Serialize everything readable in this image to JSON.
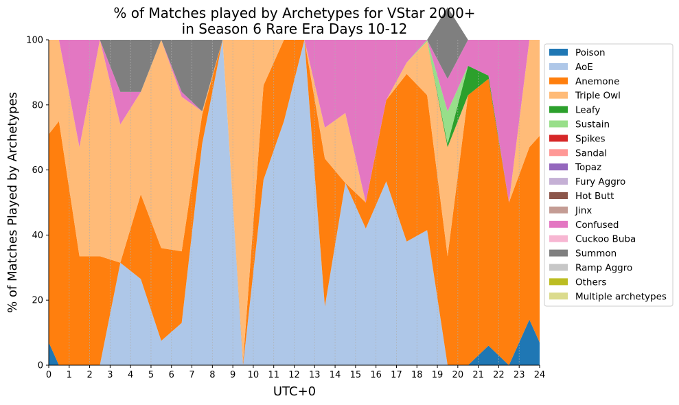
{
  "chart_data": {
    "type": "area",
    "stacked": true,
    "title_lines": [
      "% of Matches played by Archetypes for VStar 2000+",
      "in Season 6 Rare Era Days 10-12"
    ],
    "xlabel": "UTC+0",
    "ylabel": "% of Matches Played by Archetypes",
    "xlim": [
      0,
      24
    ],
    "ylim": [
      0,
      100
    ],
    "xticks": [
      0,
      1,
      2,
      3,
      4,
      5,
      6,
      7,
      8,
      9,
      10,
      11,
      12,
      13,
      14,
      15,
      16,
      17,
      18,
      19,
      20,
      21,
      22,
      23,
      24
    ],
    "yticks": [
      0,
      20,
      40,
      60,
      80,
      100
    ],
    "vertical_grid": true,
    "legend_position": "outside-right",
    "x": [
      0,
      0.5,
      1.5,
      2.5,
      3.5,
      4.5,
      5.5,
      6.5,
      7.5,
      8.5,
      9.5,
      10.5,
      11.5,
      12.5,
      13.5,
      14.5,
      15.5,
      16.5,
      17.5,
      18.5,
      19.5,
      20.5,
      21.5,
      22.5,
      23.5,
      24
    ],
    "series": [
      {
        "name": "Poison",
        "color": "#1f77b4",
        "values": [
          7,
          0,
          0,
          0,
          0,
          0,
          0,
          0,
          0,
          0,
          0,
          0,
          0,
          0,
          0,
          0,
          0,
          0,
          0,
          0,
          0,
          0,
          6,
          0,
          14,
          7
        ]
      },
      {
        "name": "AoE",
        "color": "#aec7e8",
        "values": [
          0,
          0,
          0,
          0,
          31.5,
          26.5,
          7.5,
          13,
          68,
          100,
          0,
          57,
          75,
          100,
          18,
          56,
          42,
          56.5,
          38,
          41.5,
          0,
          0,
          0,
          0,
          0,
          0
        ]
      },
      {
        "name": "Anemone",
        "color": "#ff7f0e",
        "values": [
          64,
          75,
          33.5,
          33.5,
          0,
          26,
          28.5,
          22,
          9,
          0,
          1,
          29,
          25,
          0,
          45.5,
          0,
          8,
          25,
          51.5,
          41.5,
          33.5,
          83,
          82,
          50,
          53,
          63.5
        ]
      },
      {
        "name": "Triple Owl",
        "color": "#ffbb78",
        "values": [
          29,
          25,
          33.5,
          66.5,
          42.5,
          31.5,
          64,
          47.5,
          1,
          0,
          99,
          14,
          0,
          0,
          9.5,
          21.5,
          0,
          0,
          3.5,
          16.5,
          33.5,
          0,
          0,
          0,
          33,
          29.5
        ]
      },
      {
        "name": "Leafy",
        "color": "#2ca02c",
        "values": [
          0,
          0,
          0,
          0,
          0,
          0,
          0,
          0,
          0,
          0,
          0,
          0,
          0,
          0,
          0,
          0,
          0,
          0,
          0,
          0,
          1,
          9,
          1,
          0,
          0,
          0
        ]
      },
      {
        "name": "Sustain",
        "color": "#98df8a",
        "values": [
          0,
          0,
          0,
          0,
          0,
          0,
          0,
          0,
          0,
          0,
          0,
          0,
          0,
          0,
          0,
          0,
          0,
          0,
          0,
          0.5,
          10,
          0,
          0,
          0,
          0,
          0
        ]
      },
      {
        "name": "Spikes",
        "color": "#d62728",
        "values": [
          0,
          0,
          0,
          0,
          0,
          0,
          0,
          0,
          0,
          0,
          0,
          0,
          0,
          0,
          0,
          0,
          0,
          0,
          0,
          0,
          0,
          0,
          0,
          0,
          0,
          0
        ]
      },
      {
        "name": "Sandal",
        "color": "#ff9896",
        "values": [
          0,
          0,
          0,
          0,
          0,
          0,
          0,
          0,
          0,
          0,
          0,
          0,
          0,
          0,
          0,
          0,
          0,
          0,
          0,
          0,
          0,
          0,
          0,
          0,
          0,
          0
        ]
      },
      {
        "name": "Topaz",
        "color": "#9467bd",
        "values": [
          0,
          0,
          0,
          0,
          0,
          0,
          0,
          0,
          0,
          0,
          0,
          0,
          0,
          0,
          0,
          0,
          0,
          0,
          0,
          0,
          0,
          0,
          0,
          0,
          0,
          0
        ]
      },
      {
        "name": "Fury Aggro",
        "color": "#c5b0d5",
        "values": [
          0,
          0,
          0,
          0,
          0,
          0,
          0,
          0,
          0,
          0,
          0,
          0,
          0,
          0,
          0,
          0,
          0,
          0,
          0,
          0,
          0,
          0,
          0,
          0,
          0,
          0
        ]
      },
      {
        "name": "Hot Butt",
        "color": "#8c564b",
        "values": [
          0,
          0,
          0,
          0,
          0,
          0,
          0,
          0,
          0,
          0,
          0,
          0,
          0,
          0,
          0,
          0,
          0,
          0,
          0,
          0,
          0,
          0,
          0,
          0,
          0,
          0
        ]
      },
      {
        "name": "Jinx",
        "color": "#c49c94",
        "values": [
          0,
          0,
          0,
          0,
          0,
          0,
          0,
          0,
          0,
          0,
          0,
          0,
          0,
          0,
          0,
          0,
          0,
          0,
          0,
          0,
          0,
          0,
          0,
          0,
          0,
          0
        ]
      },
      {
        "name": "Confused",
        "color": "#e377c2",
        "values": [
          0,
          0,
          33,
          0,
          10,
          0,
          0,
          1.5,
          0,
          0,
          0,
          0,
          0,
          0,
          27,
          22.5,
          50,
          18.5,
          7,
          0,
          10,
          8,
          11,
          50,
          0,
          0
        ]
      },
      {
        "name": "Cuckoo Buba",
        "color": "#f7b6d2",
        "values": [
          0,
          0,
          0,
          0,
          0,
          0,
          0,
          0,
          0,
          0,
          0,
          0,
          0,
          0,
          0,
          0,
          0,
          0,
          0,
          0,
          0,
          0,
          0,
          0,
          0,
          0
        ]
      },
      {
        "name": "Summon",
        "color": "#7f7f7f",
        "values": [
          0,
          0,
          0,
          0,
          16,
          16,
          0,
          16,
          22,
          0,
          0,
          0,
          0,
          0,
          0,
          0,
          0,
          0,
          0,
          0,
          22,
          0,
          0,
          0,
          0,
          0
        ]
      },
      {
        "name": "Ramp Aggro",
        "color": "#c7c7c7",
        "values": [
          0,
          0,
          0,
          0,
          0,
          0,
          0,
          0,
          0,
          0,
          0,
          0,
          0,
          0,
          0,
          0,
          0,
          0,
          0,
          0,
          0,
          0,
          0,
          0,
          0,
          0
        ]
      },
      {
        "name": "Others",
        "color": "#bcbd22",
        "values": [
          0,
          0,
          0,
          0,
          0,
          0,
          0,
          0,
          0,
          0,
          0,
          0,
          0,
          0,
          0,
          0,
          0,
          0,
          0,
          0,
          0,
          0,
          0,
          0,
          0,
          0
        ]
      },
      {
        "name": "Multiple archetypes",
        "color": "#dbdb8d",
        "values": [
          0,
          0,
          0,
          0,
          0,
          0,
          0,
          0,
          0,
          0,
          0,
          0,
          0,
          0,
          0,
          0,
          0,
          0,
          0,
          0,
          0,
          0,
          0,
          0,
          0,
          0
        ]
      }
    ]
  }
}
